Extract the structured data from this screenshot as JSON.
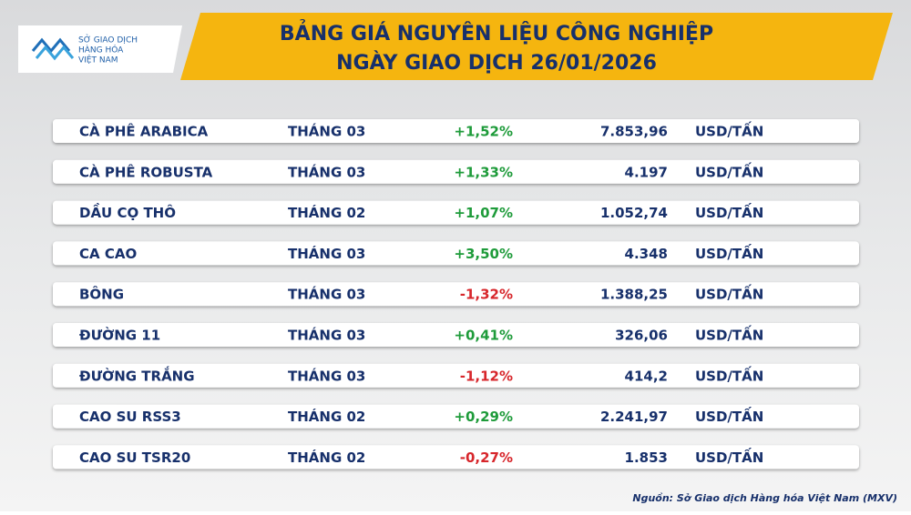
{
  "logo": {
    "lines": [
      "SỞ GIAO DỊCH",
      "HÀNG HÓA",
      "VIỆT NAM"
    ]
  },
  "header": {
    "title": "BẢNG GIÁ NGUYÊN LIỆU CÔNG NGHIỆP",
    "subtitle": "NGÀY GIAO DỊCH 26/01/2026"
  },
  "table": {
    "rows": [
      [
        "CÀ PHÊ ARABICA",
        "THÁNG 03",
        "+1,52%",
        "7.853,96",
        "USD/TẤN"
      ],
      [
        "CÀ PHÊ ROBUSTA",
        "THÁNG 03",
        "+1,33%",
        "4.197",
        "USD/TẤN"
      ],
      [
        "DẦU CỌ THÔ",
        "THÁNG 02",
        "+1,07%",
        "1.052,74",
        "USD/TẤN"
      ],
      [
        "CA CAO",
        "THÁNG 03",
        "+3,50%",
        "4.348",
        "USD/TẤN"
      ],
      [
        "BÔNG",
        "THÁNG 03",
        "-1,32%",
        "1.388,25",
        "USD/TẤN"
      ],
      [
        "ĐƯỜNG 11",
        "THÁNG 03",
        "+0,41%",
        "326,06",
        "USD/TẤN"
      ],
      [
        "ĐƯỜNG TRẮNG",
        "THÁNG 03",
        "-1,12%",
        "414,2",
        "USD/TẤN"
      ],
      [
        "CAO SU RSS3",
        "THÁNG 02",
        "+0,29%",
        "2.241,97",
        "USD/TẤN"
      ],
      [
        "CAO SU TSR20",
        "THÁNG 02",
        "-0,27%",
        "1.853",
        "USD/TẤN"
      ]
    ]
  },
  "footer": {
    "source": "Nguồn: Sở Giao dịch Hàng hóa Việt Nam (MXV)"
  }
}
